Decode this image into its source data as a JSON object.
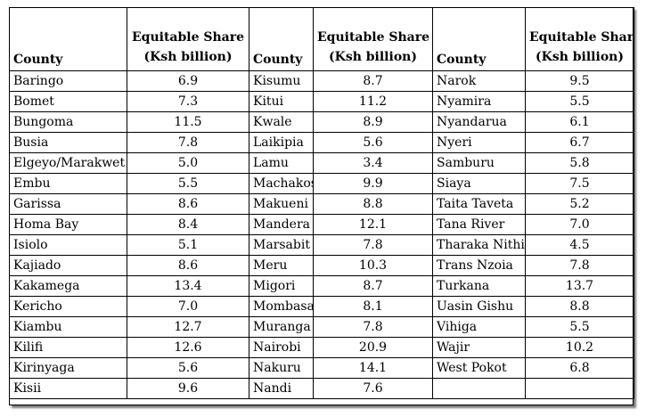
{
  "headers": {
    "county": "County",
    "share_line1": "Equitable Share",
    "share_line2": "(Ksh billion)"
  },
  "rows": [
    [
      {
        "name": "Baringo",
        "value": "6.9"
      },
      {
        "name": "Kisumu",
        "value": "8.7"
      },
      {
        "name": "Narok",
        "value": "9.5"
      }
    ],
    [
      {
        "name": "Bomet",
        "value": "7.3"
      },
      {
        "name": "Kitui",
        "value": "11.2"
      },
      {
        "name": "Nyamira",
        "value": "5.5"
      }
    ],
    [
      {
        "name": "Bungoma",
        "value": "11.5"
      },
      {
        "name": "Kwale",
        "value": "8.9"
      },
      {
        "name": "Nyandarua",
        "value": "6.1"
      }
    ],
    [
      {
        "name": "Busia",
        "value": "7.8"
      },
      {
        "name": "Laikipia",
        "value": "5.6"
      },
      {
        "name": "Nyeri",
        "value": "6.7"
      }
    ],
    [
      {
        "name": "Elgeyo/Marakwet",
        "value": "5.0"
      },
      {
        "name": "Lamu",
        "value": "3.4"
      },
      {
        "name": "Samburu",
        "value": "5.8"
      }
    ],
    [
      {
        "name": "Embu",
        "value": "5.5"
      },
      {
        "name": "Machakos",
        "value": "9.9"
      },
      {
        "name": "Siaya",
        "value": "7.5"
      }
    ],
    [
      {
        "name": "Garissa",
        "value": "8.6"
      },
      {
        "name": "Makueni",
        "value": "8.8"
      },
      {
        "name": "Taita Taveta",
        "value": "5.2"
      }
    ],
    [
      {
        "name": "Homa Bay",
        "value": "8.4"
      },
      {
        "name": "Mandera",
        "value": "12.1"
      },
      {
        "name": "Tana River",
        "value": "7.0"
      }
    ],
    [
      {
        "name": "Isiolo",
        "value": "5.1"
      },
      {
        "name": "Marsabit",
        "value": "7.8"
      },
      {
        "name": "Tharaka Nithi",
        "value": "4.5"
      }
    ],
    [
      {
        "name": "Kajiado",
        "value": "8.6"
      },
      {
        "name": "Meru",
        "value": "10.3"
      },
      {
        "name": "Trans Nzoia",
        "value": "7.8"
      }
    ],
    [
      {
        "name": "Kakamega",
        "value": "13.4"
      },
      {
        "name": "Migori",
        "value": "8.7"
      },
      {
        "name": "Turkana",
        "value": "13.7"
      }
    ],
    [
      {
        "name": "Kericho",
        "value": "7.0"
      },
      {
        "name": "Mombasa",
        "value": "8.1"
      },
      {
        "name": "Uasin Gishu",
        "value": "8.8"
      }
    ],
    [
      {
        "name": "Kiambu",
        "value": "12.7"
      },
      {
        "name": "Muranga",
        "value": "7.8"
      },
      {
        "name": "Vihiga",
        "value": "5.5"
      }
    ],
    [
      {
        "name": "Kilifi",
        "value": "12.6"
      },
      {
        "name": "Nairobi",
        "value": "20.9"
      },
      {
        "name": "Wajir",
        "value": "10.2"
      }
    ],
    [
      {
        "name": "Kirinyaga",
        "value": "5.6"
      },
      {
        "name": "Nakuru",
        "value": "14.1"
      },
      {
        "name": "West Pokot",
        "value": "6.8"
      }
    ],
    [
      {
        "name": "Kisii",
        "value": "9.6"
      },
      {
        "name": "Nandi",
        "value": "7.6"
      },
      {
        "name": "",
        "value": ""
      }
    ]
  ]
}
